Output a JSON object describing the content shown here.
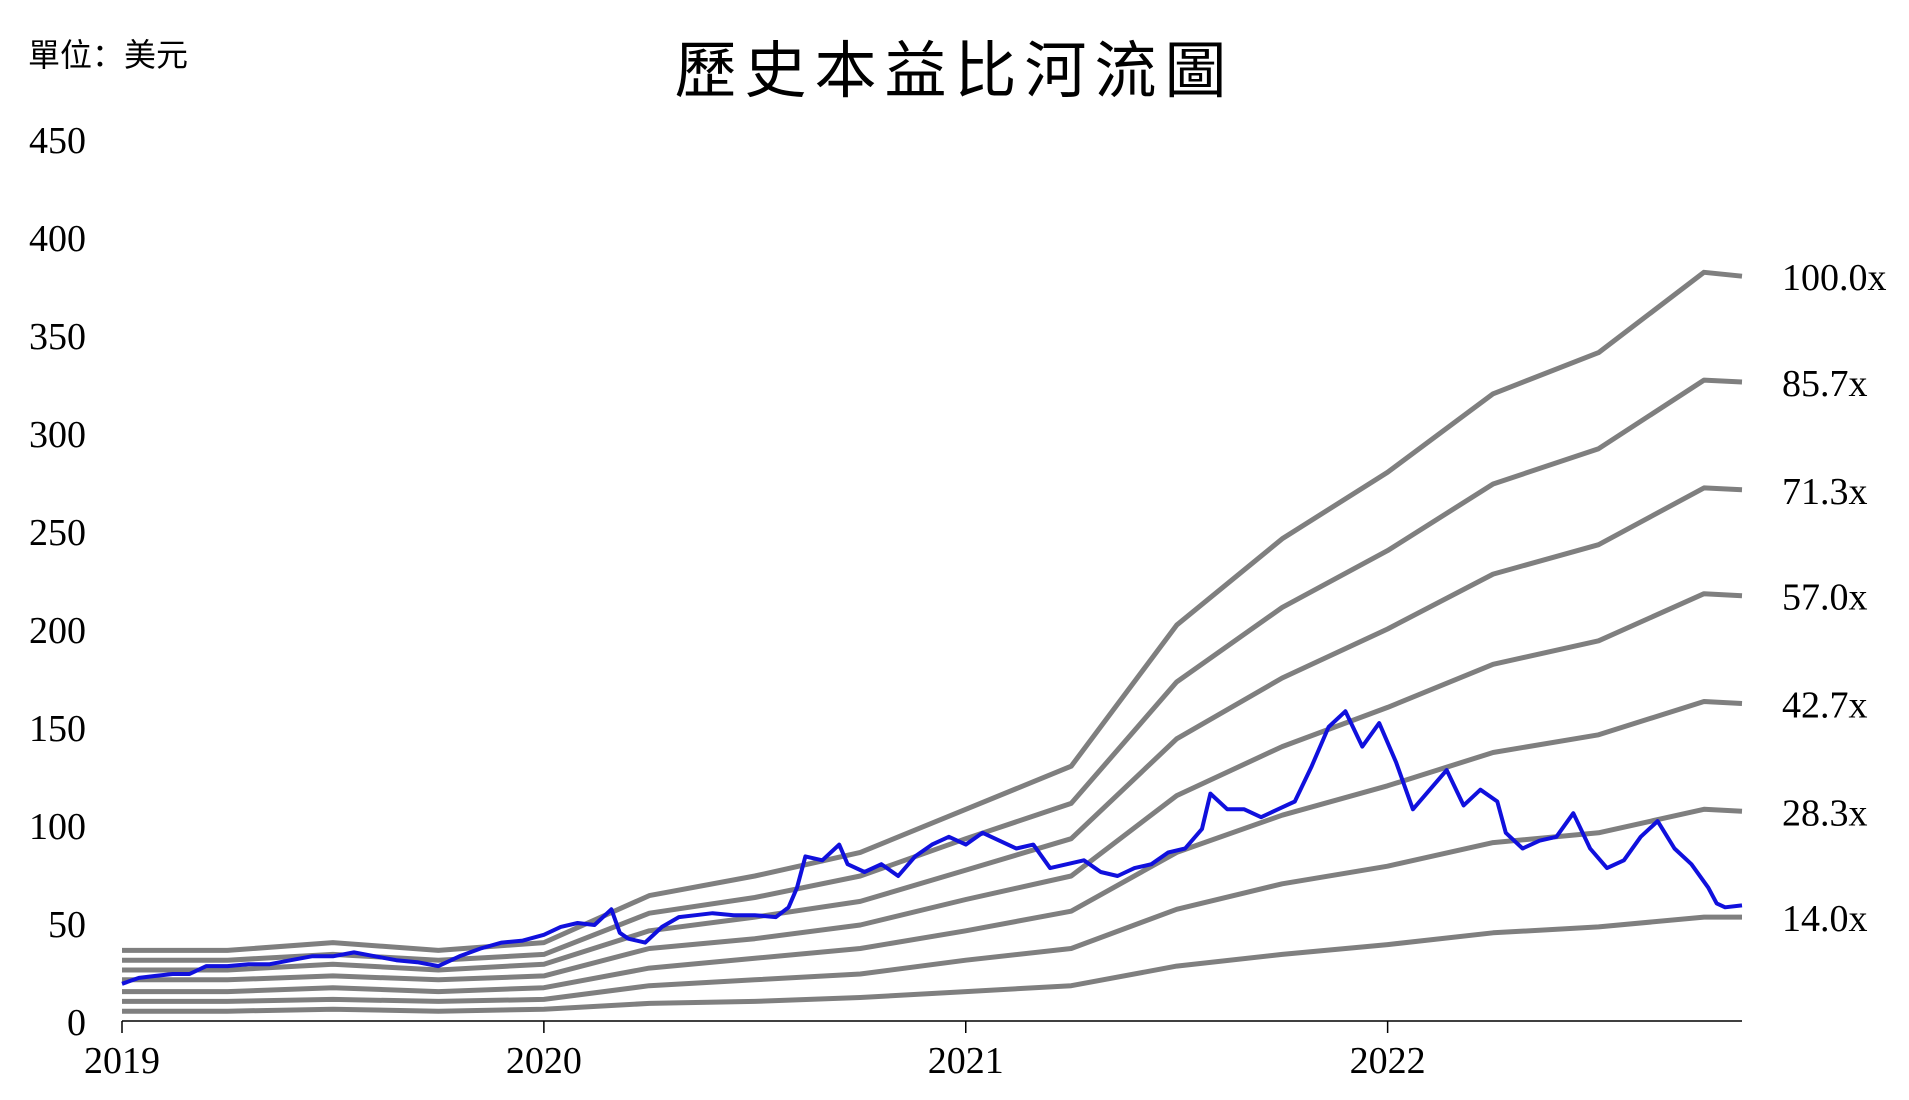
{
  "unit_label": "單位：美元",
  "chart_data": {
    "type": "line",
    "title": "歷史本益比河流圖",
    "xlabel": "",
    "ylabel": "",
    "x_range": [
      2019.0,
      2022.84
    ],
    "ylim": [
      0,
      450
    ],
    "y_ticks": [
      "0",
      "50",
      "100",
      "150",
      "200",
      "250",
      "300",
      "350",
      "400",
      "450"
    ],
    "x_ticks": [
      {
        "label": "2019",
        "value": 2019.0
      },
      {
        "label": "2020",
        "value": 2020.0
      },
      {
        "label": "2021",
        "value": 2021.0
      },
      {
        "label": "2022",
        "value": 2022.0
      }
    ],
    "grid": false,
    "band_color": "#7f7f7f",
    "price_color": "#1010dd",
    "bands": [
      {
        "label": "100.0x",
        "points": [
          [
            2019.0,
            36
          ],
          [
            2019.25,
            36
          ],
          [
            2019.5,
            40
          ],
          [
            2019.75,
            36
          ],
          [
            2020.0,
            40
          ],
          [
            2020.25,
            64
          ],
          [
            2020.5,
            74
          ],
          [
            2020.75,
            86
          ],
          [
            2021.0,
            108
          ],
          [
            2021.25,
            130
          ],
          [
            2021.5,
            202
          ],
          [
            2021.75,
            246
          ],
          [
            2022.0,
            280
          ],
          [
            2022.25,
            320
          ],
          [
            2022.5,
            341
          ],
          [
            2022.75,
            382
          ],
          [
            2022.84,
            380
          ]
        ]
      },
      {
        "label": "85.7x",
        "points": [
          [
            2019.0,
            31
          ],
          [
            2019.25,
            31
          ],
          [
            2019.5,
            34
          ],
          [
            2019.75,
            31
          ],
          [
            2020.0,
            34
          ],
          [
            2020.25,
            55
          ],
          [
            2020.5,
            63
          ],
          [
            2020.75,
            74
          ],
          [
            2021.0,
            93
          ],
          [
            2021.25,
            111
          ],
          [
            2021.5,
            173
          ],
          [
            2021.75,
            211
          ],
          [
            2022.0,
            240
          ],
          [
            2022.25,
            274
          ],
          [
            2022.5,
            292
          ],
          [
            2022.75,
            327
          ],
          [
            2022.84,
            326
          ]
        ]
      },
      {
        "label": "71.3x",
        "points": [
          [
            2019.0,
            26
          ],
          [
            2019.25,
            26
          ],
          [
            2019.5,
            29
          ],
          [
            2019.75,
            26
          ],
          [
            2020.0,
            29
          ],
          [
            2020.25,
            46
          ],
          [
            2020.5,
            53
          ],
          [
            2020.75,
            61
          ],
          [
            2021.0,
            77
          ],
          [
            2021.25,
            93
          ],
          [
            2021.5,
            144
          ],
          [
            2021.75,
            175
          ],
          [
            2022.0,
            200
          ],
          [
            2022.25,
            228
          ],
          [
            2022.5,
            243
          ],
          [
            2022.75,
            272
          ],
          [
            2022.84,
            271
          ]
        ]
      },
      {
        "label": "57.0x",
        "points": [
          [
            2019.0,
            21
          ],
          [
            2019.25,
            21
          ],
          [
            2019.5,
            23
          ],
          [
            2019.75,
            21
          ],
          [
            2020.0,
            23
          ],
          [
            2020.25,
            37
          ],
          [
            2020.5,
            42
          ],
          [
            2020.75,
            49
          ],
          [
            2021.0,
            62
          ],
          [
            2021.25,
            74
          ],
          [
            2021.5,
            115
          ],
          [
            2021.75,
            140
          ],
          [
            2022.0,
            160
          ],
          [
            2022.25,
            182
          ],
          [
            2022.5,
            194
          ],
          [
            2022.75,
            218
          ],
          [
            2022.84,
            217
          ]
        ]
      },
      {
        "label": "42.7x",
        "points": [
          [
            2019.0,
            15
          ],
          [
            2019.25,
            15
          ],
          [
            2019.5,
            17
          ],
          [
            2019.75,
            15
          ],
          [
            2020.0,
            17
          ],
          [
            2020.25,
            27
          ],
          [
            2020.5,
            32
          ],
          [
            2020.75,
            37
          ],
          [
            2021.0,
            46
          ],
          [
            2021.25,
            56
          ],
          [
            2021.5,
            86
          ],
          [
            2021.75,
            105
          ],
          [
            2022.0,
            120
          ],
          [
            2022.25,
            137
          ],
          [
            2022.5,
            146
          ],
          [
            2022.75,
            163
          ],
          [
            2022.84,
            162
          ]
        ]
      },
      {
        "label": "28.3x",
        "points": [
          [
            2019.0,
            10
          ],
          [
            2019.25,
            10
          ],
          [
            2019.5,
            11
          ],
          [
            2019.75,
            10
          ],
          [
            2020.0,
            11
          ],
          [
            2020.25,
            18
          ],
          [
            2020.5,
            21
          ],
          [
            2020.75,
            24
          ],
          [
            2021.0,
            31
          ],
          [
            2021.25,
            37
          ],
          [
            2021.5,
            57
          ],
          [
            2021.75,
            70
          ],
          [
            2022.0,
            79
          ],
          [
            2022.25,
            91
          ],
          [
            2022.5,
            96
          ],
          [
            2022.75,
            108
          ],
          [
            2022.84,
            107
          ]
        ]
      },
      {
        "label": "14.0x",
        "points": [
          [
            2019.0,
            5
          ],
          [
            2019.25,
            5
          ],
          [
            2019.5,
            6
          ],
          [
            2019.75,
            5
          ],
          [
            2020.0,
            6
          ],
          [
            2020.25,
            9
          ],
          [
            2020.5,
            10
          ],
          [
            2020.75,
            12
          ],
          [
            2021.0,
            15
          ],
          [
            2021.25,
            18
          ],
          [
            2021.5,
            28
          ],
          [
            2021.75,
            34
          ],
          [
            2022.0,
            39
          ],
          [
            2022.25,
            45
          ],
          [
            2022.5,
            48
          ],
          [
            2022.75,
            53
          ],
          [
            2022.84,
            53
          ]
        ]
      }
    ],
    "price": {
      "points": [
        [
          2019.0,
          19
        ],
        [
          2019.04,
          22
        ],
        [
          2019.08,
          23
        ],
        [
          2019.12,
          24
        ],
        [
          2019.16,
          24
        ],
        [
          2019.2,
          28
        ],
        [
          2019.25,
          28
        ],
        [
          2019.3,
          29
        ],
        [
          2019.35,
          29
        ],
        [
          2019.4,
          31
        ],
        [
          2019.45,
          33
        ],
        [
          2019.5,
          33
        ],
        [
          2019.55,
          35
        ],
        [
          2019.6,
          33
        ],
        [
          2019.65,
          31
        ],
        [
          2019.7,
          30
        ],
        [
          2019.75,
          28
        ],
        [
          2019.8,
          33
        ],
        [
          2019.85,
          37
        ],
        [
          2019.9,
          40
        ],
        [
          2019.95,
          41
        ],
        [
          2020.0,
          44
        ],
        [
          2020.04,
          48
        ],
        [
          2020.08,
          50
        ],
        [
          2020.12,
          49
        ],
        [
          2020.16,
          57
        ],
        [
          2020.18,
          45
        ],
        [
          2020.2,
          42
        ],
        [
          2020.24,
          40
        ],
        [
          2020.28,
          48
        ],
        [
          2020.32,
          53
        ],
        [
          2020.36,
          54
        ],
        [
          2020.4,
          55
        ],
        [
          2020.45,
          54
        ],
        [
          2020.5,
          54
        ],
        [
          2020.55,
          53
        ],
        [
          2020.58,
          58
        ],
        [
          2020.6,
          68
        ],
        [
          2020.62,
          84
        ],
        [
          2020.66,
          82
        ],
        [
          2020.7,
          90
        ],
        [
          2020.72,
          80
        ],
        [
          2020.76,
          76
        ],
        [
          2020.8,
          80
        ],
        [
          2020.84,
          74
        ],
        [
          2020.88,
          84
        ],
        [
          2020.92,
          90
        ],
        [
          2020.96,
          94
        ],
        [
          2021.0,
          90
        ],
        [
          2021.04,
          96
        ],
        [
          2021.08,
          92
        ],
        [
          2021.12,
          88
        ],
        [
          2021.16,
          90
        ],
        [
          2021.2,
          78
        ],
        [
          2021.24,
          80
        ],
        [
          2021.28,
          82
        ],
        [
          2021.32,
          76
        ],
        [
          2021.36,
          74
        ],
        [
          2021.4,
          78
        ],
        [
          2021.44,
          80
        ],
        [
          2021.48,
          86
        ],
        [
          2021.52,
          88
        ],
        [
          2021.56,
          98
        ],
        [
          2021.58,
          116
        ],
        [
          2021.62,
          108
        ],
        [
          2021.66,
          108
        ],
        [
          2021.7,
          104
        ],
        [
          2021.74,
          108
        ],
        [
          2021.78,
          112
        ],
        [
          2021.82,
          130
        ],
        [
          2021.86,
          150
        ],
        [
          2021.9,
          158
        ],
        [
          2021.94,
          140
        ],
        [
          2021.98,
          152
        ],
        [
          2022.02,
          132
        ],
        [
          2022.06,
          108
        ],
        [
          2022.1,
          118
        ],
        [
          2022.14,
          128
        ],
        [
          2022.18,
          110
        ],
        [
          2022.22,
          118
        ],
        [
          2022.26,
          112
        ],
        [
          2022.28,
          96
        ],
        [
          2022.32,
          88
        ],
        [
          2022.36,
          92
        ],
        [
          2022.4,
          94
        ],
        [
          2022.44,
          106
        ],
        [
          2022.48,
          88
        ],
        [
          2022.52,
          78
        ],
        [
          2022.56,
          82
        ],
        [
          2022.6,
          94
        ],
        [
          2022.64,
          102
        ],
        [
          2022.68,
          88
        ],
        [
          2022.72,
          80
        ],
        [
          2022.76,
          68
        ],
        [
          2022.78,
          60
        ],
        [
          2022.8,
          58
        ],
        [
          2022.84,
          59
        ]
      ]
    }
  }
}
